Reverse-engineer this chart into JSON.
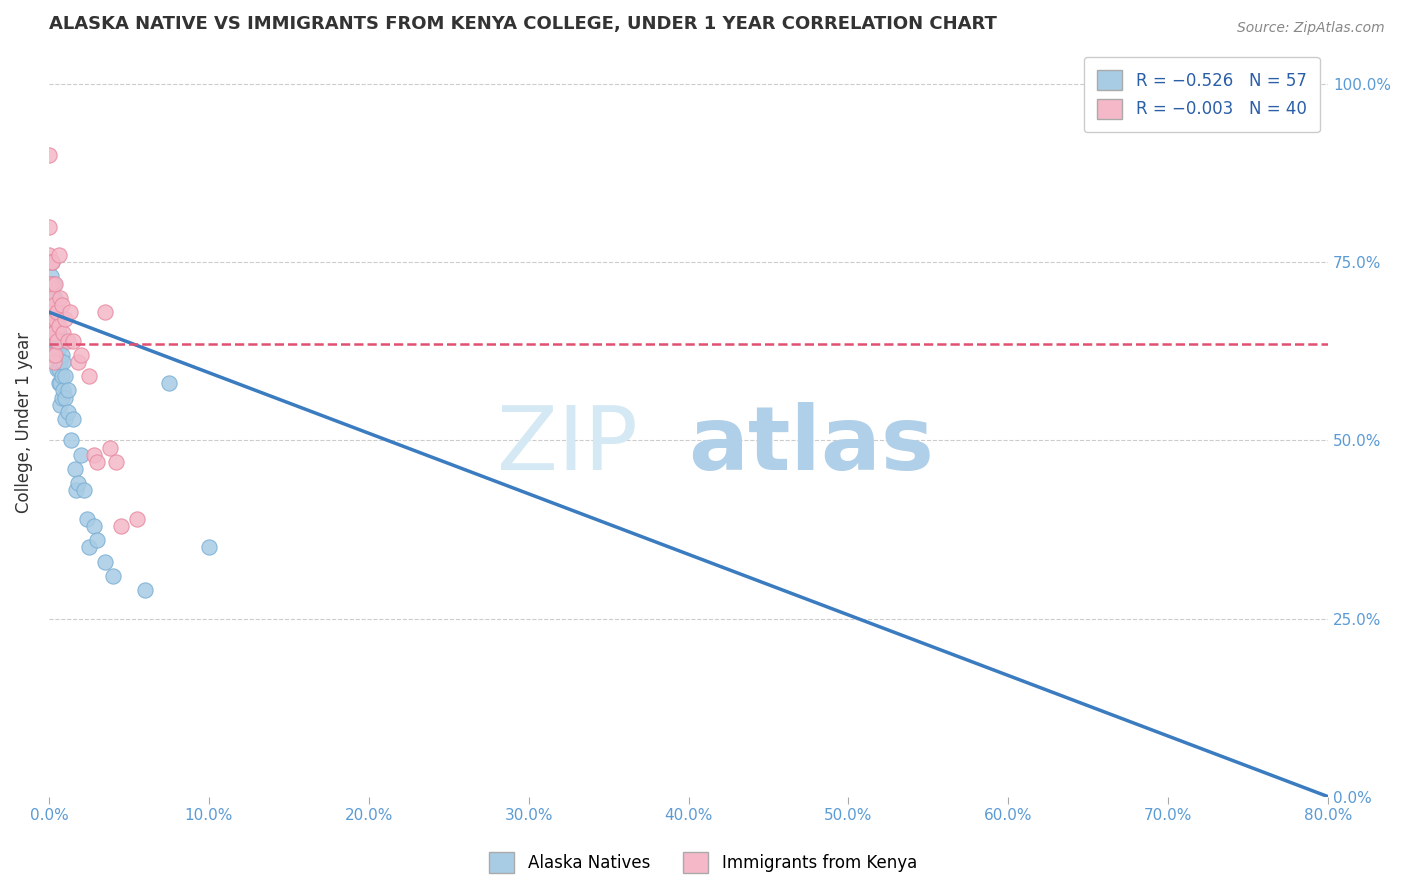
{
  "title": "ALASKA NATIVE VS IMMIGRANTS FROM KENYA COLLEGE, UNDER 1 YEAR CORRELATION CHART",
  "source": "Source: ZipAtlas.com",
  "ylabel_label": "College, Under 1 year",
  "xlim": [
    0.0,
    0.8
  ],
  "ylim": [
    0.0,
    1.05
  ],
  "legend_r1": "R = -0.526",
  "legend_n1": "N = 57",
  "legend_r2": "R = -0.003",
  "legend_n2": "N = 40",
  "blue_color": "#a8cce4",
  "pink_color": "#f4b8c8",
  "blue_edge_color": "#7bafd4",
  "pink_edge_color": "#e88aa0",
  "blue_line_color": "#3a7cbf",
  "pink_line_color": "#e05070",
  "watermark_color": "#d5e9f5",
  "background_color": "#ffffff",
  "grid_color": "#cccccc",
  "title_color": "#333333",
  "tick_color": "#5b9bd5",
  "alaska_native_points": [
    [
      0.0,
      0.69
    ],
    [
      0.001,
      0.73
    ],
    [
      0.001,
      0.71
    ],
    [
      0.002,
      0.75
    ],
    [
      0.002,
      0.72
    ],
    [
      0.002,
      0.7
    ],
    [
      0.002,
      0.68
    ],
    [
      0.002,
      0.66
    ],
    [
      0.003,
      0.72
    ],
    [
      0.003,
      0.7
    ],
    [
      0.003,
      0.68
    ],
    [
      0.003,
      0.66
    ],
    [
      0.003,
      0.64
    ],
    [
      0.003,
      0.62
    ],
    [
      0.004,
      0.7
    ],
    [
      0.004,
      0.68
    ],
    [
      0.004,
      0.66
    ],
    [
      0.004,
      0.64
    ],
    [
      0.004,
      0.62
    ],
    [
      0.005,
      0.67
    ],
    [
      0.005,
      0.65
    ],
    [
      0.005,
      0.62
    ],
    [
      0.005,
      0.6
    ],
    [
      0.006,
      0.65
    ],
    [
      0.006,
      0.63
    ],
    [
      0.006,
      0.6
    ],
    [
      0.006,
      0.58
    ],
    [
      0.007,
      0.64
    ],
    [
      0.007,
      0.61
    ],
    [
      0.007,
      0.58
    ],
    [
      0.007,
      0.55
    ],
    [
      0.008,
      0.62
    ],
    [
      0.008,
      0.59
    ],
    [
      0.008,
      0.56
    ],
    [
      0.009,
      0.61
    ],
    [
      0.009,
      0.57
    ],
    [
      0.01,
      0.59
    ],
    [
      0.01,
      0.56
    ],
    [
      0.01,
      0.53
    ],
    [
      0.012,
      0.57
    ],
    [
      0.012,
      0.54
    ],
    [
      0.014,
      0.5
    ],
    [
      0.015,
      0.53
    ],
    [
      0.016,
      0.46
    ],
    [
      0.017,
      0.43
    ],
    [
      0.018,
      0.44
    ],
    [
      0.02,
      0.48
    ],
    [
      0.022,
      0.43
    ],
    [
      0.024,
      0.39
    ],
    [
      0.025,
      0.35
    ],
    [
      0.028,
      0.38
    ],
    [
      0.03,
      0.36
    ],
    [
      0.035,
      0.33
    ],
    [
      0.04,
      0.31
    ],
    [
      0.06,
      0.29
    ],
    [
      0.075,
      0.58
    ],
    [
      0.1,
      0.35
    ]
  ],
  "kenya_points": [
    [
      0.0,
      0.9
    ],
    [
      0.0,
      0.8
    ],
    [
      0.0,
      0.76
    ],
    [
      0.0,
      0.72
    ],
    [
      0.0,
      0.69
    ],
    [
      0.0,
      0.66
    ],
    [
      0.001,
      0.75
    ],
    [
      0.001,
      0.72
    ],
    [
      0.001,
      0.68
    ],
    [
      0.002,
      0.75
    ],
    [
      0.002,
      0.7
    ],
    [
      0.002,
      0.65
    ],
    [
      0.002,
      0.62
    ],
    [
      0.003,
      0.69
    ],
    [
      0.003,
      0.65
    ],
    [
      0.003,
      0.61
    ],
    [
      0.004,
      0.72
    ],
    [
      0.004,
      0.67
    ],
    [
      0.004,
      0.62
    ],
    [
      0.005,
      0.68
    ],
    [
      0.005,
      0.64
    ],
    [
      0.006,
      0.76
    ],
    [
      0.006,
      0.66
    ],
    [
      0.007,
      0.7
    ],
    [
      0.008,
      0.69
    ],
    [
      0.009,
      0.65
    ],
    [
      0.01,
      0.67
    ],
    [
      0.012,
      0.64
    ],
    [
      0.013,
      0.68
    ],
    [
      0.015,
      0.64
    ],
    [
      0.018,
      0.61
    ],
    [
      0.02,
      0.62
    ],
    [
      0.025,
      0.59
    ],
    [
      0.028,
      0.48
    ],
    [
      0.03,
      0.47
    ],
    [
      0.035,
      0.68
    ],
    [
      0.038,
      0.49
    ],
    [
      0.042,
      0.47
    ],
    [
      0.045,
      0.38
    ],
    [
      0.055,
      0.39
    ]
  ],
  "blue_trendline": [
    [
      0.0,
      0.68
    ],
    [
      0.8,
      0.0
    ]
  ],
  "pink_trendline": [
    [
      0.0,
      0.635
    ],
    [
      0.8,
      0.635
    ]
  ]
}
